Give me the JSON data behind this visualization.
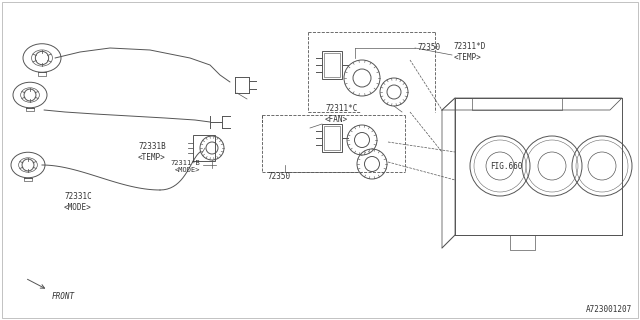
{
  "bg_color": "#ffffff",
  "line_color": "#555555",
  "text_color": "#333333",
  "part_number": "A723001207",
  "figsize": [
    6.4,
    3.2
  ],
  "dpi": 100,
  "labels": {
    "72331B": [
      1.52,
      1.8,
      "72331B\n<TEMP>"
    ],
    "72331C": [
      0.78,
      1.3,
      "72331C\n<MODE>"
    ],
    "72311B": [
      2.2,
      1.65,
      "72311*B\n<MODE>"
    ],
    "72350_bot": [
      2.9,
      1.58,
      "72350"
    ],
    "72311C": [
      3.2,
      1.22,
      "72311*C\n<FAN>"
    ],
    "72350_top": [
      4.05,
      2.08,
      "72350"
    ],
    "72311D": [
      4.78,
      2.02,
      "72311*D\n<TEMP>"
    ],
    "FIG660": [
      4.9,
      1.52,
      "FIG.660"
    ],
    "FRONT": [
      0.65,
      0.28,
      "FRONT"
    ]
  }
}
